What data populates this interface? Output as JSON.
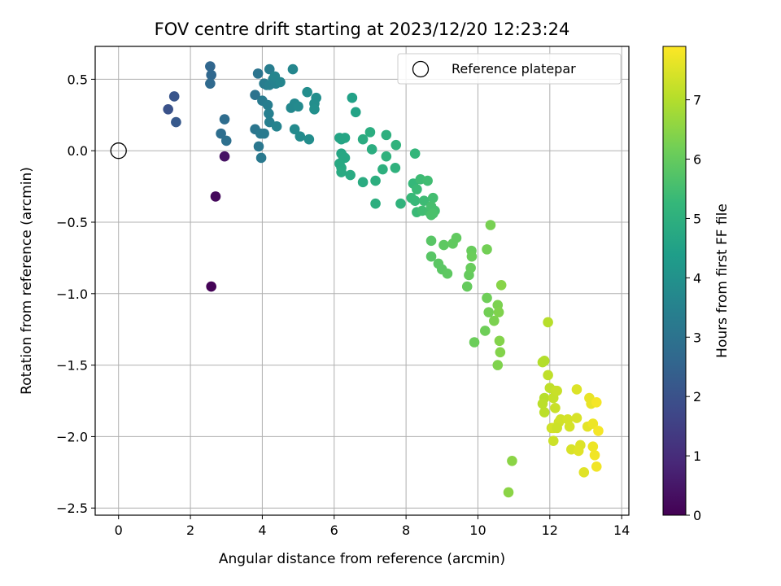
{
  "chart_data": {
    "type": "scatter",
    "title": "FOV centre drift starting at 2023/12/20 12:23:24",
    "xlabel": "Angular distance from reference (arcmin)",
    "ylabel": "Rotation from reference (arcmin)",
    "xlim": [
      -0.65,
      14.2
    ],
    "ylim": [
      -2.55,
      0.73
    ],
    "xticks": [
      0,
      2,
      4,
      6,
      8,
      10,
      12,
      14
    ],
    "xtick_labels": [
      "0",
      "2",
      "4",
      "6",
      "8",
      "10",
      "12",
      "14"
    ],
    "yticks": [
      0.5,
      0.0,
      -0.5,
      -1.0,
      -1.5,
      -2.0,
      -2.5
    ],
    "ytick_labels": [
      "0.5",
      "0.0",
      "−0.5",
      "−1.0",
      "−1.5",
      "−2.0",
      "−2.5"
    ],
    "grid": true,
    "legend": {
      "placement": "top-right",
      "entries": [
        "Reference platepar"
      ]
    },
    "reference_point": {
      "x": 0,
      "y": 0,
      "label": "Reference platepar"
    },
    "colorbar": {
      "label": "Hours from first FF file",
      "range": [
        0,
        7.9
      ],
      "ticks": [
        0,
        1,
        2,
        3,
        4,
        5,
        6,
        7
      ],
      "tick_labels": [
        "0",
        "1",
        "2",
        "3",
        "4",
        "5",
        "6",
        "7"
      ],
      "colormap": "viridis",
      "colors": [
        "#440154",
        "#482878",
        "#3e4989",
        "#31688e",
        "#26828e",
        "#1f9e89",
        "#35b779",
        "#6ece58",
        "#b5de2b",
        "#fde725"
      ]
    },
    "series": [
      {
        "color_by": "hours",
        "points": [
          [
            2.58,
            -0.95,
            0.05
          ],
          [
            2.7,
            -0.32,
            0.2
          ],
          [
            2.95,
            -0.04,
            0.4
          ],
          [
            1.38,
            0.29,
            2.0
          ],
          [
            1.55,
            0.38,
            2.1
          ],
          [
            1.6,
            0.2,
            2.2
          ],
          [
            2.55,
            0.59,
            2.6
          ],
          [
            2.58,
            0.53,
            2.65
          ],
          [
            2.55,
            0.47,
            2.7
          ],
          [
            2.95,
            0.22,
            2.8
          ],
          [
            2.85,
            0.12,
            2.85
          ],
          [
            3.0,
            0.07,
            2.9
          ],
          [
            3.8,
            0.39,
            3.0
          ],
          [
            3.88,
            0.54,
            3.05
          ],
          [
            3.8,
            0.15,
            3.1
          ],
          [
            3.9,
            0.03,
            3.15
          ],
          [
            3.97,
            -0.05,
            3.2
          ],
          [
            3.95,
            0.12,
            3.2
          ],
          [
            4.05,
            0.12,
            3.25
          ],
          [
            4.0,
            0.35,
            3.25
          ],
          [
            4.05,
            0.47,
            3.3
          ],
          [
            4.12,
            0.46,
            3.3
          ],
          [
            4.2,
            0.57,
            3.35
          ],
          [
            4.15,
            0.32,
            3.35
          ],
          [
            4.18,
            0.26,
            3.4
          ],
          [
            4.2,
            0.2,
            3.4
          ],
          [
            4.2,
            0.46,
            3.45
          ],
          [
            4.3,
            0.5,
            3.5
          ],
          [
            4.38,
            0.47,
            3.5
          ],
          [
            4.4,
            0.17,
            3.55
          ],
          [
            4.5,
            0.48,
            3.6
          ],
          [
            4.35,
            0.52,
            3.6
          ],
          [
            4.85,
            0.57,
            3.65
          ],
          [
            4.8,
            0.3,
            3.7
          ],
          [
            4.9,
            0.33,
            3.7
          ],
          [
            4.9,
            0.15,
            3.75
          ],
          [
            5.0,
            0.31,
            3.75
          ],
          [
            5.05,
            0.1,
            3.8
          ],
          [
            5.25,
            0.41,
            3.85
          ],
          [
            5.3,
            0.08,
            3.85
          ],
          [
            5.5,
            0.37,
            3.9
          ],
          [
            5.45,
            0.33,
            3.9
          ],
          [
            5.45,
            0.29,
            3.95
          ],
          [
            6.5,
            0.37,
            4.5
          ],
          [
            6.6,
            0.27,
            4.55
          ],
          [
            6.15,
            0.09,
            4.6
          ],
          [
            6.2,
            0.08,
            4.6
          ],
          [
            6.3,
            0.09,
            4.65
          ],
          [
            6.2,
            -0.02,
            4.65
          ],
          [
            6.25,
            -0.04,
            4.7
          ],
          [
            6.3,
            -0.05,
            4.7
          ],
          [
            6.15,
            -0.09,
            4.75
          ],
          [
            6.2,
            -0.12,
            4.75
          ],
          [
            6.2,
            -0.15,
            4.8
          ],
          [
            6.45,
            -0.17,
            4.8
          ],
          [
            6.8,
            -0.22,
            4.85
          ],
          [
            6.8,
            0.08,
            4.85
          ],
          [
            7.0,
            0.13,
            4.9
          ],
          [
            7.05,
            0.01,
            4.9
          ],
          [
            7.15,
            -0.21,
            4.95
          ],
          [
            7.15,
            -0.37,
            4.95
          ],
          [
            7.35,
            -0.13,
            5.0
          ],
          [
            7.45,
            0.11,
            5.0
          ],
          [
            7.45,
            -0.04,
            5.05
          ],
          [
            7.7,
            -0.12,
            5.05
          ],
          [
            7.72,
            0.04,
            5.1
          ],
          [
            7.85,
            -0.37,
            5.1
          ],
          [
            8.25,
            -0.02,
            5.2
          ],
          [
            8.2,
            -0.23,
            5.25
          ],
          [
            8.15,
            -0.33,
            5.3
          ],
          [
            8.25,
            -0.35,
            5.3
          ],
          [
            8.3,
            -0.43,
            5.35
          ],
          [
            8.3,
            -0.27,
            5.35
          ],
          [
            8.4,
            -0.2,
            5.4
          ],
          [
            8.5,
            -0.35,
            5.4
          ],
          [
            8.45,
            -0.42,
            5.45
          ],
          [
            8.6,
            -0.21,
            5.45
          ],
          [
            8.65,
            -0.43,
            5.5
          ],
          [
            8.75,
            -0.33,
            5.5
          ],
          [
            8.7,
            -0.39,
            5.55
          ],
          [
            8.8,
            -0.42,
            5.55
          ],
          [
            8.7,
            -0.45,
            5.6
          ],
          [
            8.75,
            -0.44,
            5.6
          ],
          [
            8.7,
            -0.63,
            5.8
          ],
          [
            8.7,
            -0.74,
            5.8
          ],
          [
            8.9,
            -0.79,
            5.85
          ],
          [
            9.0,
            -0.83,
            5.85
          ],
          [
            9.05,
            -0.66,
            5.9
          ],
          [
            9.15,
            -0.86,
            5.9
          ],
          [
            9.3,
            -0.65,
            5.95
          ],
          [
            9.4,
            -0.61,
            5.95
          ],
          [
            9.7,
            -0.95,
            6.0
          ],
          [
            9.75,
            -0.87,
            6.0
          ],
          [
            9.8,
            -0.82,
            6.05
          ],
          [
            9.82,
            -0.7,
            6.05
          ],
          [
            9.83,
            -0.74,
            6.1
          ],
          [
            9.9,
            -1.34,
            6.1
          ],
          [
            10.2,
            -1.26,
            6.15
          ],
          [
            10.25,
            -1.03,
            6.15
          ],
          [
            10.3,
            -1.13,
            6.2
          ],
          [
            10.25,
            -0.69,
            6.2
          ],
          [
            10.35,
            -0.52,
            6.25
          ],
          [
            10.45,
            -1.19,
            6.3
          ],
          [
            10.55,
            -1.08,
            6.3
          ],
          [
            10.58,
            -1.13,
            6.35
          ],
          [
            10.55,
            -1.5,
            6.35
          ],
          [
            10.6,
            -1.33,
            6.4
          ],
          [
            10.62,
            -1.41,
            6.4
          ],
          [
            10.65,
            -0.94,
            6.45
          ],
          [
            10.85,
            -2.39,
            6.5
          ],
          [
            10.95,
            -2.17,
            6.5
          ],
          [
            11.8,
            -1.48,
            7.0
          ],
          [
            11.85,
            -1.47,
            7.0
          ],
          [
            11.95,
            -1.2,
            7.05
          ],
          [
            11.85,
            -1.73,
            7.05
          ],
          [
            11.8,
            -1.77,
            7.1
          ],
          [
            11.85,
            -1.83,
            7.1
          ],
          [
            11.95,
            -1.57,
            7.15
          ],
          [
            12.0,
            -1.66,
            7.15
          ],
          [
            12.1,
            -1.73,
            7.2
          ],
          [
            12.15,
            -1.68,
            7.2
          ],
          [
            12.2,
            -1.68,
            7.25
          ],
          [
            12.15,
            -1.8,
            7.25
          ],
          [
            12.05,
            -1.94,
            7.3
          ],
          [
            12.1,
            -2.03,
            7.3
          ],
          [
            12.25,
            -1.9,
            7.35
          ],
          [
            12.3,
            -1.88,
            7.35
          ],
          [
            12.5,
            -1.88,
            7.4
          ],
          [
            12.55,
            -1.93,
            7.4
          ],
          [
            12.6,
            -2.09,
            7.45
          ],
          [
            12.75,
            -1.87,
            7.45
          ],
          [
            12.75,
            -1.67,
            7.5
          ],
          [
            12.85,
            -2.06,
            7.5
          ],
          [
            12.8,
            -2.1,
            7.55
          ],
          [
            12.95,
            -2.25,
            7.55
          ],
          [
            13.05,
            -1.93,
            7.6
          ],
          [
            13.1,
            -1.73,
            7.65
          ],
          [
            13.15,
            -1.77,
            7.65
          ],
          [
            13.2,
            -1.91,
            7.7
          ],
          [
            13.2,
            -2.07,
            7.7
          ],
          [
            13.25,
            -2.13,
            7.75
          ],
          [
            13.3,
            -2.21,
            7.75
          ],
          [
            13.3,
            -1.76,
            7.8
          ],
          [
            13.35,
            -1.96,
            7.8
          ],
          [
            12.1,
            -1.94,
            7.4
          ],
          [
            12.2,
            -1.94,
            7.3
          ]
        ]
      }
    ]
  }
}
